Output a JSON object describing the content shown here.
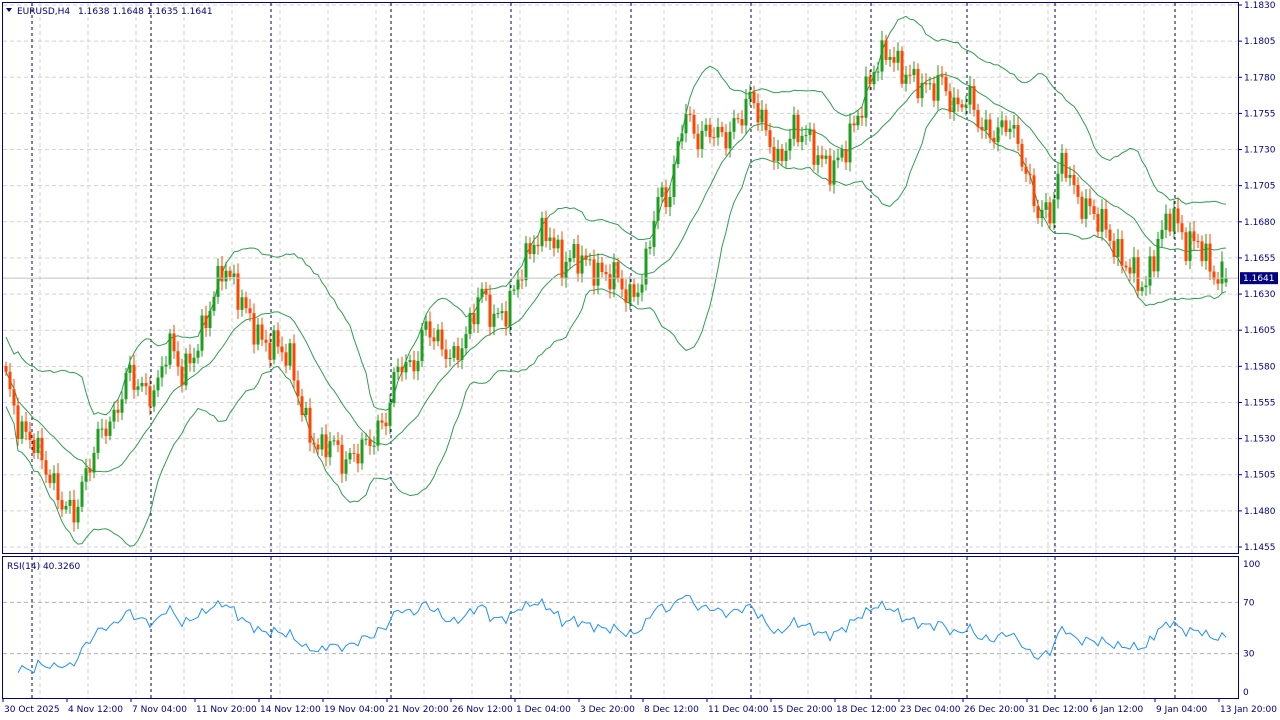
{
  "header": {
    "symbol_label": "EURUSD,H4",
    "ohlc_label": "1.1638 1.1648 1.1635 1.1641"
  },
  "rsi_panel": {
    "label": "RSI(14) 40.3260",
    "period": 14,
    "value": 40.326,
    "levels": [
      30,
      70
    ],
    "ticks": [
      "100",
      "70",
      "30",
      "0"
    ]
  },
  "colors": {
    "axis": "#000080",
    "bull": "#1E9E1E",
    "bear": "#FF4500",
    "bands": "#2E9E4F",
    "rsi": "#1E90FF",
    "grid": "#D3D3D3",
    "separator": "#000040",
    "price_tag_bg": "#000080"
  },
  "chart_data": {
    "type": "candlestick",
    "symbol": "EURUSD",
    "timeframe": "H4",
    "current_price": "1.1641",
    "ylim": [
      1.1455,
      1.183
    ],
    "price_ticks": [
      "1.1830",
      "1.1805",
      "1.1780",
      "1.1755",
      "1.1730",
      "1.1705",
      "1.1680",
      "1.1655",
      "1.1630",
      "1.1605",
      "1.1580",
      "1.1555",
      "1.1530",
      "1.1505",
      "1.1480",
      "1.1455"
    ],
    "time_ticks": [
      "30 Oct 2025",
      "4 Nov 12:00",
      "7 Nov 04:00",
      "11 Nov 20:00",
      "14 Nov 12:00",
      "19 Nov 04:00",
      "21 Nov 20:00",
      "26 Nov 12:00",
      "1 Dec 04:00",
      "3 Dec 20:00",
      "8 Dec 12:00",
      "11 Dec 04:00",
      "15 Dec 20:00",
      "18 Dec 12:00",
      "23 Dec 04:00",
      "26 Dec 20:00",
      "31 Dec 12:00",
      "6 Jan 12:00",
      "9 Jan 04:00",
      "13 Jan 20:00"
    ],
    "indicators": [
      "Bollinger Bands",
      "RSI(14)"
    ],
    "grid": true,
    "approx_closes": [
      1.1572,
      1.1536,
      1.1529,
      1.1508,
      1.1487,
      1.1477,
      1.1508,
      1.1536,
      1.1543,
      1.1577,
      1.1564,
      1.156,
      1.1598,
      1.1574,
      1.1591,
      1.1619,
      1.165,
      1.1633,
      1.1612,
      1.1595,
      1.1595,
      1.1584,
      1.1543,
      1.1522,
      1.1529,
      1.1512,
      1.1522,
      1.1529,
      1.1543,
      1.1584,
      1.1577,
      1.1609,
      1.1595,
      1.1584,
      1.1602,
      1.1633,
      1.1612,
      1.1619,
      1.1647,
      1.1667,
      1.1674,
      1.165,
      1.1657,
      1.165,
      1.1643,
      1.1643,
      1.1626,
      1.164,
      1.1695,
      1.1699,
      1.1757,
      1.1737,
      1.1744,
      1.1737,
      1.175,
      1.1768,
      1.1744,
      1.1719,
      1.1744,
      1.174,
      1.1723,
      1.1716,
      1.1733,
      1.1757,
      1.1785,
      1.1799,
      1.1785,
      1.1778,
      1.1771,
      1.1778,
      1.1757,
      1.1768,
      1.1744,
      1.174,
      1.175,
      1.1723,
      1.1688,
      1.1685,
      1.1726,
      1.1695,
      1.1688,
      1.1678,
      1.1657,
      1.1647,
      1.1633,
      1.1667,
      1.1688,
      1.1664,
      1.1667,
      1.1643,
      1.1641
    ]
  }
}
